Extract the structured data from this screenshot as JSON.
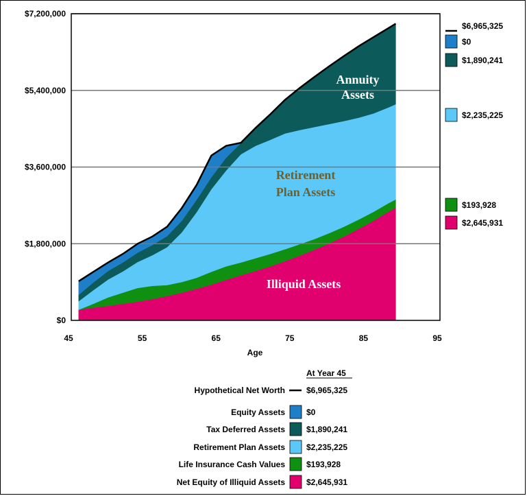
{
  "chart_data": {
    "type": "area",
    "stacked": true,
    "xlabel": "Age",
    "x_ticks": [
      45,
      55,
      65,
      75,
      85,
      95
    ],
    "x_range": [
      45,
      95
    ],
    "ylim": [
      0,
      7200000
    ],
    "y_tick_labels": [
      "$0",
      "$1,800,000",
      "$3,600,000",
      "$5,400,000",
      "$7,200,000"
    ],
    "y_ticks": [
      0,
      1800000,
      3600000,
      5400000,
      7200000
    ],
    "grid": true,
    "x": [
      46,
      48,
      50,
      52,
      54,
      56,
      58,
      60,
      62,
      64,
      66,
      68,
      70,
      72,
      74,
      76,
      78,
      80,
      82,
      84,
      86,
      88,
      89
    ],
    "series": [
      {
        "name": "Net Equity of Illiquid Assets",
        "color": "#E0006E",
        "values": [
          250000,
          300000,
          340000,
          390000,
          440000,
          500000,
          570000,
          650000,
          740000,
          840000,
          950000,
          1060000,
          1160000,
          1270000,
          1390000,
          1520000,
          1660000,
          1810000,
          1970000,
          2150000,
          2340000,
          2550000,
          2645931
        ]
      },
      {
        "name": "Life Insurance Cash Values",
        "color": "#109010",
        "values": [
          0,
          90000,
          200000,
          260000,
          320000,
          310000,
          260000,
          250000,
          260000,
          300000,
          320000,
          300000,
          300000,
          290000,
          280000,
          270000,
          250000,
          240000,
          230000,
          220000,
          210000,
          200000,
          193928
        ]
      },
      {
        "name": "Retirement Plan Assets",
        "color": "#5BC8F8",
        "values": [
          200000,
          320000,
          420000,
          500000,
          610000,
          720000,
          890000,
          1170000,
          1540000,
          1940000,
          2250000,
          2540000,
          2640000,
          2680000,
          2720000,
          2680000,
          2630000,
          2560000,
          2480000,
          2390000,
          2310000,
          2250000,
          2235225
        ]
      },
      {
        "name": "Tax Deferred Assets",
        "color": "#0D5A5A",
        "values": [
          150000,
          180000,
          200000,
          210000,
          220000,
          240000,
          260000,
          270000,
          290000,
          280000,
          300000,
          260000,
          420000,
          600000,
          790000,
          990000,
          1180000,
          1360000,
          1530000,
          1680000,
          1790000,
          1860000,
          1890241
        ]
      },
      {
        "name": "Equity Assets",
        "color": "#1E7FC8",
        "values": [
          320000,
          250000,
          200000,
          200000,
          210000,
          200000,
          220000,
          300000,
          350000,
          510000,
          280000,
          10000,
          0,
          0,
          0,
          0,
          0,
          0,
          0,
          0,
          0,
          0,
          0
        ]
      }
    ],
    "net_worth_line": {
      "name": "Hypothetical Net Worth",
      "color": "#000000"
    },
    "area_annotations": {
      "annuity": [
        "Annuity",
        "Assets"
      ],
      "retirement": [
        "Retirement",
        "Plan Assets"
      ],
      "illiquid": "Illiquid  Assets"
    },
    "side_values": {
      "net_worth": "$6,965,325",
      "equity": "$0",
      "tax_deferred": "$1,890,241",
      "retirement": "$2,235,225",
      "life_insurance": "$193,928",
      "illiquid": "$2,645,931"
    },
    "legend": {
      "header": "At Year 45",
      "rows": [
        {
          "label": "Hypothetical Net Worth",
          "value": "$6,965,325",
          "color": "#000000",
          "kind": "line"
        },
        {
          "label": "Equity Assets",
          "value": "$0",
          "color": "#1E7FC8",
          "kind": "box"
        },
        {
          "label": "Tax Deferred Assets",
          "value": "$1,890,241",
          "color": "#0D5A5A",
          "kind": "box"
        },
        {
          "label": "Retirement Plan Assets",
          "value": "$2,235,225",
          "color": "#5BC8F8",
          "kind": "box"
        },
        {
          "label": "Life Insurance Cash Values",
          "value": "$193,928",
          "color": "#109010",
          "kind": "box"
        },
        {
          "label": "Net Equity of Illiquid Assets",
          "value": "$2,645,931",
          "color": "#E0006E",
          "kind": "box"
        }
      ]
    }
  }
}
